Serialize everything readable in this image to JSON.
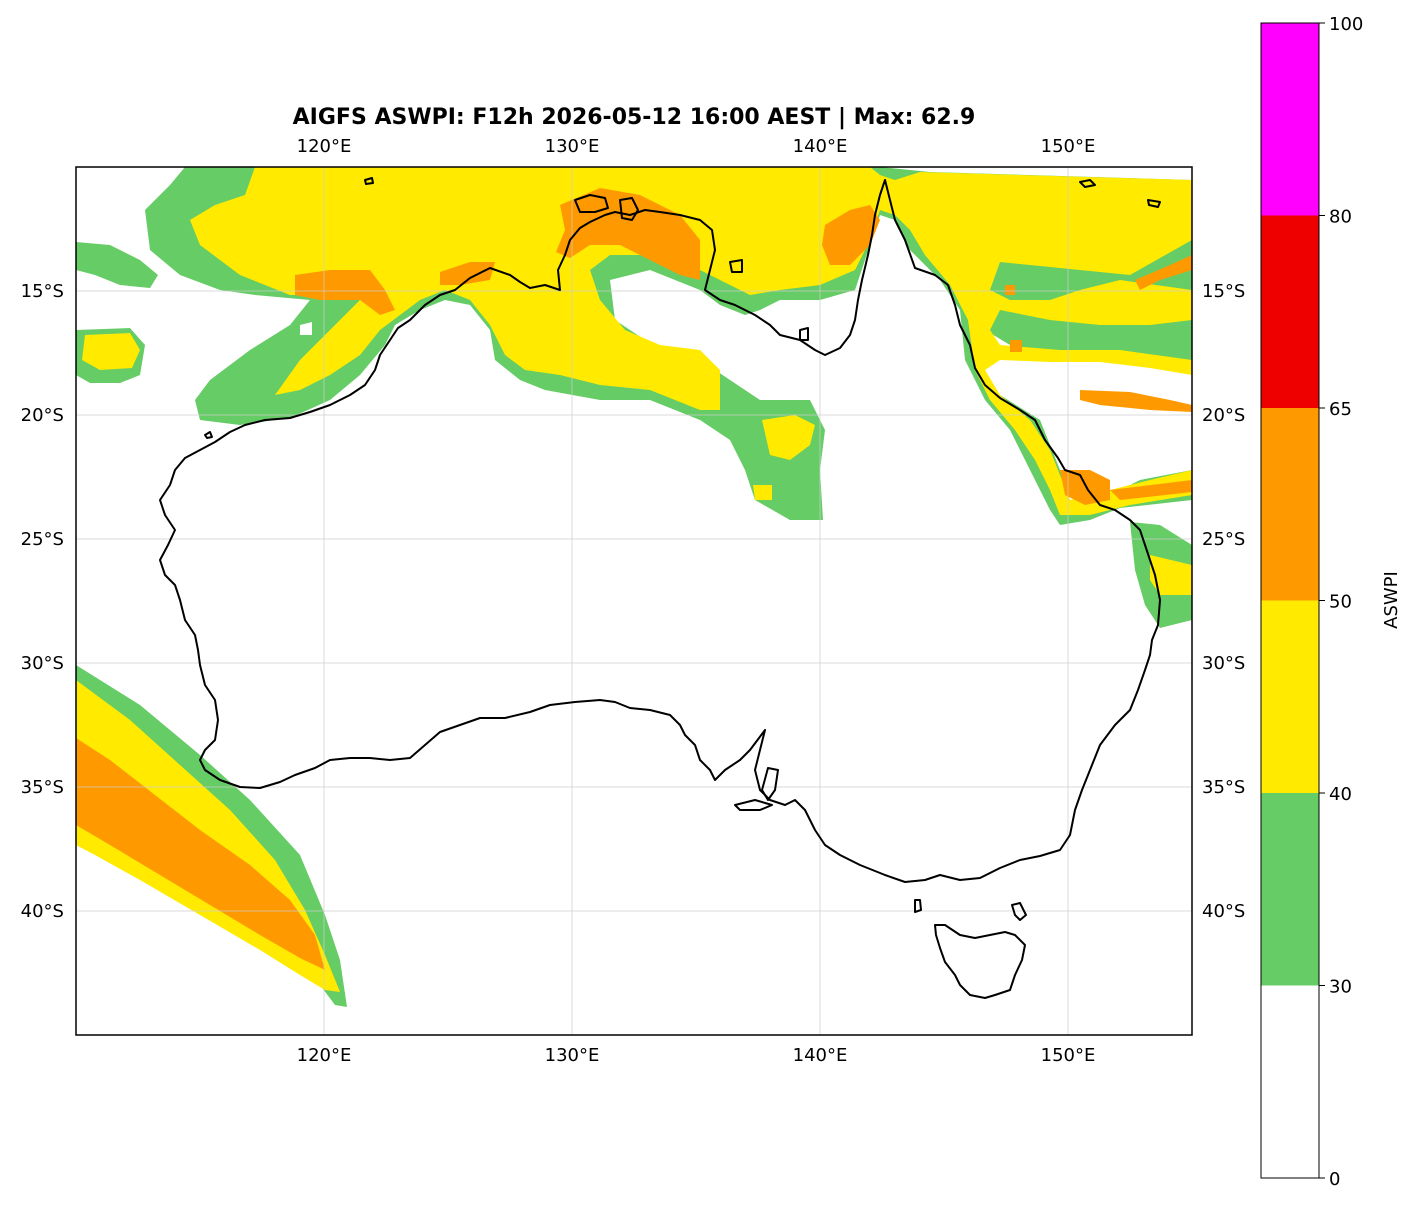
{
  "title": "AIGFS ASWPI: F12h 2026-05-12 16:00 AEST | Max: 62.9",
  "map": {
    "lon_range": [
      110,
      155
    ],
    "lat_range": [
      -45,
      -10
    ],
    "lon_ticks": [
      {
        "value": 120,
        "label": "120°E"
      },
      {
        "value": 130,
        "label": "130°E"
      },
      {
        "value": 140,
        "label": "140°E"
      },
      {
        "value": 150,
        "label": "150°E"
      }
    ],
    "lat_ticks": [
      {
        "value": -15,
        "label": "15°S"
      },
      {
        "value": -20,
        "label": "20°S"
      },
      {
        "value": -25,
        "label": "25°S"
      },
      {
        "value": -30,
        "label": "30°S"
      },
      {
        "value": -35,
        "label": "35°S"
      },
      {
        "value": -40,
        "label": "40°S"
      }
    ],
    "gridlines": true,
    "labels_on": "all four sides (lon top and bottom, lat left and right)"
  },
  "colorbar": {
    "label": "ASWPI",
    "bounds": [
      0,
      30,
      40,
      50,
      65,
      80,
      100
    ],
    "tick_labels": [
      "0",
      "30",
      "40",
      "50",
      "65",
      "80",
      "100"
    ],
    "colors": [
      "#ffffff",
      "#66cc66",
      "#ffea00",
      "#ff9900",
      "#ee0000",
      "#ff00ff"
    ]
  },
  "chart_data": {
    "type": "heatmap",
    "variable": "ASWPI",
    "max_value": 62.9,
    "regions": [
      {
        "area": "Timor Sea / north Kimberley coast",
        "category": "40-50",
        "embedded": "50-65 patches near 117-119°E, 14-15°S"
      },
      {
        "area": "Top End and Arnhem Land",
        "category": "40-50",
        "embedded": "50-65 near 129-136°E, 11-15°S"
      },
      {
        "area": "Northern Territory interior to 23°S",
        "category": "30-40",
        "embedded": "40-50 cores"
      },
      {
        "area": "Cape York Peninsula",
        "category": "40-50",
        "embedded": "50-65 near 140-142°E, 12-13°S"
      },
      {
        "area": "Coral Sea and Queensland coast",
        "category": "40-50",
        "embedded": "50-65 streaks 148-155°E, 13-24°S"
      },
      {
        "area": "South-east Queensland / NE NSW coast",
        "category": "30-50",
        "embedded": "none"
      },
      {
        "area": "Southern Ocean south-west of WA",
        "category": "40-50",
        "embedded": "50-65 band 110-120°E, 33-42°S"
      }
    ]
  }
}
